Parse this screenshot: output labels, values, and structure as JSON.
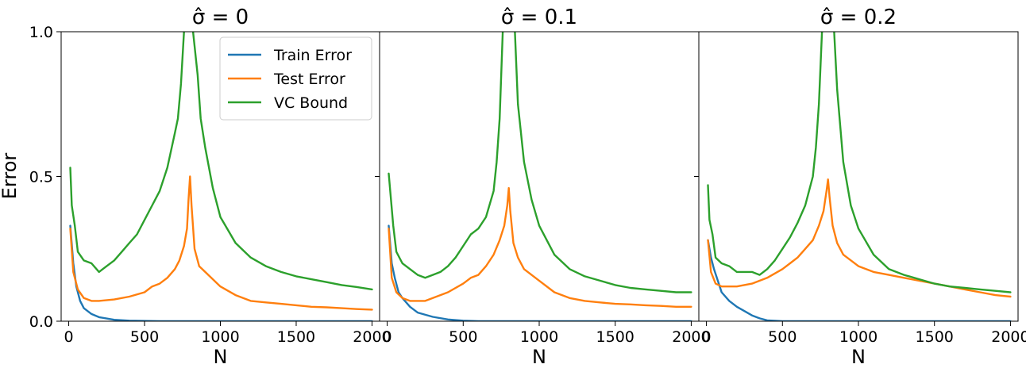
{
  "chart_data": [
    {
      "type": "line",
      "title": "σ̂ = 0",
      "xlabel": "N",
      "ylabel": "Error",
      "xlim": [
        -50,
        2050
      ],
      "ylim": [
        0,
        1
      ],
      "xticks": [
        "0",
        "500",
        "1000",
        "1500",
        "2000"
      ],
      "yticks": [
        "0.0",
        "0.5",
        "1.0"
      ],
      "grid": false,
      "legend": {
        "placement": "top-right",
        "entries": [
          "Train Error",
          "Test Error",
          "VC Bound"
        ]
      },
      "series": [
        {
          "name": "Train Error",
          "color": "#1f77b4",
          "x": [
            10,
            30,
            50,
            75,
            100,
            150,
            200,
            300,
            400,
            600,
            1000,
            2000
          ],
          "y": [
            0.33,
            0.2,
            0.12,
            0.07,
            0.045,
            0.025,
            0.014,
            0.005,
            0.002,
            0.0,
            0.0,
            0.0
          ]
        },
        {
          "name": "Test Error",
          "color": "#ff7f0e",
          "x": [
            10,
            30,
            60,
            100,
            150,
            200,
            300,
            400,
            500,
            550,
            600,
            650,
            700,
            730,
            760,
            780,
            790,
            800,
            810,
            830,
            860,
            900,
            1000,
            1100,
            1200,
            1300,
            1400,
            1500,
            1600,
            1700,
            1800,
            1900,
            2000
          ],
          "y": [
            0.32,
            0.17,
            0.11,
            0.08,
            0.07,
            0.07,
            0.075,
            0.085,
            0.1,
            0.12,
            0.13,
            0.15,
            0.18,
            0.21,
            0.26,
            0.32,
            0.42,
            0.5,
            0.4,
            0.25,
            0.19,
            0.17,
            0.12,
            0.09,
            0.07,
            0.065,
            0.06,
            0.055,
            0.05,
            0.048,
            0.045,
            0.042,
            0.04
          ]
        },
        {
          "name": "VC Bound",
          "color": "#2ca02c",
          "x": [
            10,
            20,
            40,
            60,
            100,
            150,
            200,
            250,
            300,
            350,
            400,
            450,
            500,
            550,
            600,
            650,
            700,
            720,
            740,
            760,
            770,
            800,
            820,
            850,
            870,
            900,
            950,
            1000,
            1100,
            1200,
            1300,
            1400,
            1500,
            1600,
            1700,
            1800,
            1900,
            2000
          ],
          "y": [
            0.53,
            0.4,
            0.33,
            0.24,
            0.21,
            0.2,
            0.17,
            0.19,
            0.21,
            0.24,
            0.27,
            0.3,
            0.35,
            0.4,
            0.45,
            0.53,
            0.65,
            0.7,
            0.82,
            1.0,
            1.08,
            1.08,
            1.0,
            0.85,
            0.7,
            0.6,
            0.46,
            0.36,
            0.27,
            0.22,
            0.19,
            0.17,
            0.155,
            0.145,
            0.135,
            0.125,
            0.118,
            0.11
          ]
        }
      ]
    },
    {
      "type": "line",
      "title": "σ̂ = 0.1",
      "xlabel": "N",
      "ylabel": "",
      "xlim": [
        -50,
        2050
      ],
      "ylim": [
        0,
        1
      ],
      "xticks": [
        "0",
        "500",
        "1000",
        "1500",
        "2000"
      ],
      "yticks": [],
      "grid": false,
      "series": [
        {
          "name": "Train Error",
          "color": "#1f77b4",
          "x": [
            10,
            30,
            50,
            75,
            100,
            150,
            200,
            300,
            400,
            500,
            600,
            1000,
            2000
          ],
          "y": [
            0.33,
            0.2,
            0.15,
            0.1,
            0.08,
            0.05,
            0.03,
            0.015,
            0.006,
            0.002,
            0.0,
            0.0,
            0.0
          ]
        },
        {
          "name": "Test Error",
          "color": "#ff7f0e",
          "x": [
            10,
            30,
            60,
            100,
            150,
            200,
            250,
            300,
            400,
            500,
            550,
            600,
            650,
            700,
            740,
            770,
            790,
            800,
            810,
            830,
            860,
            900,
            1000,
            1100,
            1200,
            1300,
            1400,
            1500,
            1600,
            1700,
            1800,
            1900,
            2000
          ],
          "y": [
            0.32,
            0.15,
            0.1,
            0.08,
            0.07,
            0.07,
            0.07,
            0.08,
            0.1,
            0.13,
            0.15,
            0.16,
            0.19,
            0.23,
            0.28,
            0.33,
            0.4,
            0.46,
            0.38,
            0.27,
            0.22,
            0.18,
            0.14,
            0.1,
            0.08,
            0.07,
            0.065,
            0.06,
            0.058,
            0.055,
            0.053,
            0.05,
            0.05
          ]
        },
        {
          "name": "VC Bound",
          "color": "#2ca02c",
          "x": [
            10,
            20,
            40,
            60,
            100,
            150,
            200,
            250,
            300,
            350,
            400,
            450,
            500,
            550,
            600,
            650,
            700,
            720,
            740,
            760,
            780,
            820,
            840,
            860,
            900,
            950,
            1000,
            1100,
            1200,
            1300,
            1400,
            1500,
            1600,
            1700,
            1800,
            1900,
            2000
          ],
          "y": [
            0.51,
            0.45,
            0.33,
            0.24,
            0.2,
            0.18,
            0.16,
            0.15,
            0.16,
            0.17,
            0.19,
            0.22,
            0.26,
            0.3,
            0.32,
            0.36,
            0.45,
            0.55,
            0.7,
            1.0,
            1.08,
            1.08,
            1.0,
            0.75,
            0.55,
            0.42,
            0.33,
            0.23,
            0.18,
            0.155,
            0.14,
            0.125,
            0.115,
            0.11,
            0.105,
            0.1,
            0.1
          ]
        }
      ]
    },
    {
      "type": "line",
      "title": "σ̂ = 0.2",
      "xlabel": "N",
      "ylabel": "",
      "xlim": [
        -50,
        2050
      ],
      "ylim": [
        0,
        1
      ],
      "xticks": [
        "0",
        "500",
        "1000",
        "1500",
        "2000"
      ],
      "yticks": [],
      "grid": false,
      "series": [
        {
          "name": "Train Error",
          "color": "#1f77b4",
          "x": [
            10,
            30,
            50,
            75,
            100,
            150,
            200,
            250,
            300,
            350,
            400,
            500,
            1000,
            2000
          ],
          "y": [
            0.28,
            0.22,
            0.18,
            0.14,
            0.1,
            0.07,
            0.05,
            0.035,
            0.02,
            0.01,
            0.003,
            0.0,
            0.0,
            0.0
          ]
        },
        {
          "name": "Test Error",
          "color": "#ff7f0e",
          "x": [
            10,
            30,
            60,
            100,
            150,
            200,
            300,
            400,
            500,
            550,
            600,
            650,
            700,
            740,
            770,
            790,
            800,
            810,
            830,
            860,
            900,
            1000,
            1100,
            1200,
            1300,
            1400,
            1500,
            1600,
            1700,
            1800,
            1900,
            2000
          ],
          "y": [
            0.28,
            0.17,
            0.13,
            0.12,
            0.12,
            0.12,
            0.13,
            0.15,
            0.18,
            0.2,
            0.22,
            0.25,
            0.28,
            0.33,
            0.38,
            0.45,
            0.49,
            0.43,
            0.33,
            0.27,
            0.23,
            0.19,
            0.17,
            0.16,
            0.15,
            0.14,
            0.13,
            0.12,
            0.11,
            0.1,
            0.09,
            0.085
          ]
        },
        {
          "name": "VC Bound",
          "color": "#2ca02c",
          "x": [
            10,
            20,
            40,
            60,
            100,
            150,
            200,
            250,
            300,
            350,
            400,
            450,
            500,
            550,
            600,
            650,
            700,
            720,
            740,
            760,
            780,
            820,
            840,
            860,
            900,
            950,
            1000,
            1100,
            1200,
            1300,
            1400,
            1500,
            1600,
            1700,
            1800,
            1900,
            2000
          ],
          "y": [
            0.47,
            0.35,
            0.3,
            0.22,
            0.2,
            0.19,
            0.17,
            0.17,
            0.17,
            0.16,
            0.18,
            0.21,
            0.25,
            0.29,
            0.34,
            0.4,
            0.5,
            0.6,
            0.75,
            1.0,
            1.08,
            1.08,
            1.0,
            0.8,
            0.55,
            0.4,
            0.32,
            0.23,
            0.18,
            0.16,
            0.145,
            0.13,
            0.12,
            0.115,
            0.11,
            0.105,
            0.1
          ]
        }
      ]
    }
  ]
}
